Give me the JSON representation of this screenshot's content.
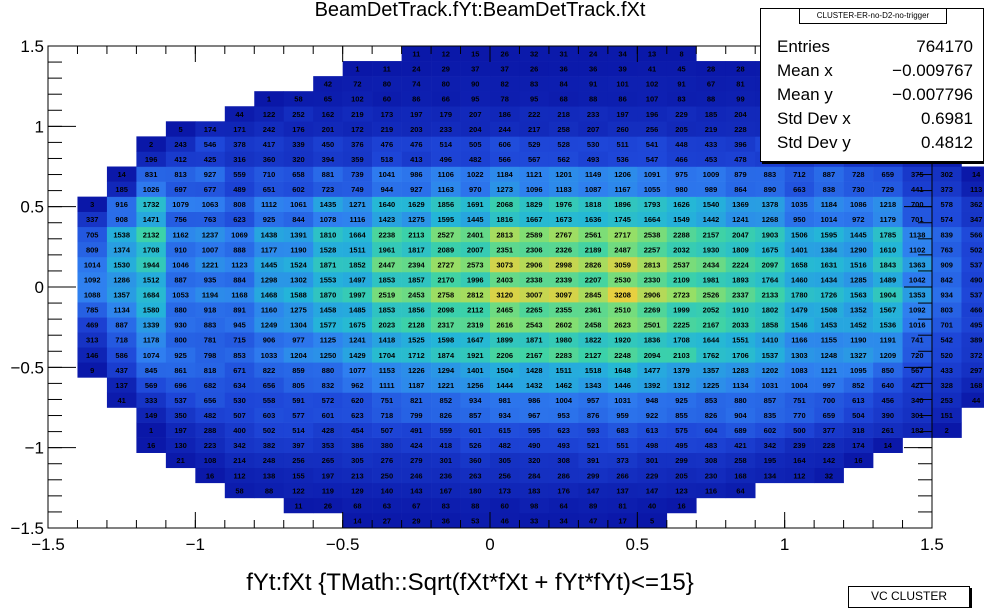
{
  "title": "BeamDetTrack.fYt:BeamDetTrack.fXt",
  "xlabel": "fYt:fXt {TMath::Sqrt(fXt*fXt + fYt*fYt)<=15}",
  "stats": {
    "name": "CLUSTER-ER-no-D2-no-trigger",
    "rows": [
      {
        "key": "Entries",
        "value": "764170"
      },
      {
        "key": "Mean x",
        "value": "−0.009767"
      },
      {
        "key": "Mean y",
        "value": "−0.007796"
      },
      {
        "key": "Std Dev x",
        "value": "0.6981"
      },
      {
        "key": "Std Dev y",
        "value": "0.4812"
      }
    ]
  },
  "corner_tag": "VC CLUSTER",
  "colors": {
    "palette": [
      "#0a17a8",
      "#1e46d8",
      "#2f7ef0",
      "#24b6d8",
      "#3cd2a8",
      "#8ee06a",
      "#e8d040"
    ]
  },
  "chart_data": {
    "type": "heatmap",
    "xlim": [
      -1.5,
      1.5
    ],
    "ylim": [
      -1.5,
      1.5
    ],
    "x_ticks": [
      "−1.5",
      "−1",
      "−0.5",
      "0",
      "0.5",
      "1",
      "1.5"
    ],
    "y_ticks": [
      "−1.5",
      "−1",
      "−0.5",
      "0",
      "0.5",
      "1",
      "1.5"
    ],
    "x_tick_values": [
      -1.5,
      -1,
      -0.5,
      0,
      0.5,
      1,
      1.5
    ],
    "y_tick_values": [
      -1.5,
      -1,
      -0.5,
      0,
      0.5,
      1,
      1.5
    ],
    "grid": false,
    "x_bins": 30,
    "y_bins": 30,
    "rows": [
      {
        "y_bin": 1,
        "start_bin": 11,
        "values": [
          14,
          27,
          29,
          36,
          53,
          46,
          33,
          34,
          47,
          17,
          5
        ]
      },
      {
        "y_bin": 2,
        "start_bin": 9,
        "values": [
          11,
          26,
          68,
          63,
          67,
          83,
          88,
          60,
          98,
          64,
          89,
          81,
          40,
          16
        ]
      },
      {
        "y_bin": 3,
        "start_bin": 7,
        "values": [
          58,
          88,
          122,
          119,
          129,
          140,
          143,
          167,
          180,
          173,
          183,
          176,
          147,
          137,
          147,
          123,
          116,
          64
        ]
      },
      {
        "y_bin": 4,
        "start_bin": 6,
        "values": [
          16,
          112,
          138,
          155,
          197,
          213,
          250,
          246,
          236,
          263,
          256,
          284,
          286,
          299,
          266,
          229,
          205,
          230,
          168,
          134,
          112,
          32
        ]
      },
      {
        "y_bin": 5,
        "start_bin": 5,
        "values": [
          21,
          108,
          214,
          248,
          256,
          265,
          305,
          276,
          279,
          301,
          360,
          305,
          320,
          308,
          391,
          373,
          301,
          299,
          308,
          258,
          195,
          164,
          142,
          16
        ]
      },
      {
        "y_bin": 6,
        "start_bin": 4,
        "values": [
          16,
          130,
          223,
          342,
          382,
          397,
          353,
          386,
          380,
          424,
          418,
          526,
          482,
          490,
          493,
          521,
          551,
          498,
          495,
          483,
          421,
          342,
          239,
          228,
          174,
          14
        ]
      },
      {
        "y_bin": 7,
        "start_bin": 4,
        "values": [
          1,
          197,
          288,
          400,
          502,
          514,
          428,
          454,
          507,
          491,
          559,
          601,
          615,
          595,
          623,
          593,
          683,
          613,
          575,
          604,
          689,
          602,
          500,
          377,
          318,
          261,
          182,
          2
        ]
      },
      {
        "y_bin": 8,
        "start_bin": 4,
        "values": [
          149,
          350,
          482,
          507,
          603,
          577,
          601,
          623,
          718,
          799,
          826,
          857,
          934,
          967,
          953,
          876,
          959,
          922,
          855,
          826,
          904,
          835,
          770,
          659,
          504,
          390,
          301,
          151
        ]
      },
      {
        "y_bin": 9,
        "start_bin": 3,
        "values": [
          41,
          333,
          537,
          656,
          530,
          558,
          591,
          572,
          620,
          751,
          821,
          852,
          934,
          981,
          986,
          1004,
          957,
          1031,
          948,
          925,
          853,
          880,
          857,
          751,
          700,
          613,
          456,
          340,
          253,
          44
        ]
      },
      {
        "y_bin": 10,
        "start_bin": 3,
        "values": [
          137,
          569,
          696,
          682,
          634,
          656,
          805,
          832,
          962,
          1111,
          1187,
          1221,
          1256,
          1444,
          1432,
          1462,
          1343,
          1446,
          1392,
          1312,
          1225,
          1134,
          1031,
          1004,
          997,
          852,
          640,
          421,
          328,
          168
        ]
      },
      {
        "y_bin": 11,
        "start_bin": 2,
        "values": [
          9,
          437,
          845,
          861,
          818,
          671,
          822,
          859,
          880,
          1077,
          1153,
          1226,
          1294,
          1401,
          1504,
          1428,
          1511,
          1518,
          1648,
          1477,
          1379,
          1357,
          1283,
          1202,
          1083,
          1121,
          1095,
          850,
          567,
          433,
          297,
          6
        ]
      },
      {
        "y_bin": 12,
        "start_bin": 2,
        "values": [
          146,
          586,
          1074,
          925,
          798,
          853,
          1033,
          1204,
          1250,
          1429,
          1704,
          1712,
          1874,
          1921,
          2206,
          2167,
          2283,
          2127,
          2248,
          2094,
          2103,
          1762,
          1706,
          1537,
          1303,
          1248,
          1327,
          1209,
          720,
          520,
          372,
          119
        ]
      },
      {
        "y_bin": 13,
        "start_bin": 2,
        "values": [
          313,
          718,
          1178,
          800,
          781,
          715,
          906,
          977,
          1125,
          1241,
          1418,
          1525,
          1598,
          1647,
          1899,
          1871,
          1980,
          1822,
          1920,
          1836,
          1708,
          1644,
          1551,
          1410,
          1166,
          1155,
          1190,
          1191,
          741,
          542,
          389,
          158
        ]
      },
      {
        "y_bin": 14,
        "start_bin": 2,
        "values": [
          469,
          887,
          1339,
          930,
          883,
          945,
          1249,
          1304,
          1577,
          1675,
          2023,
          2128,
          2317,
          2319,
          2616,
          2543,
          2602,
          2458,
          2623,
          2501,
          2225,
          2167,
          2033,
          1858,
          1546,
          1453,
          1452,
          1536,
          1016,
          701,
          495,
          281
        ]
      },
      {
        "y_bin": 15,
        "start_bin": 2,
        "values": [
          785,
          1134,
          1580,
          880,
          918,
          891,
          1160,
          1275,
          1458,
          1485,
          1853,
          1856,
          2098,
          2112,
          2465,
          2265,
          2355,
          2361,
          2510,
          2269,
          1999,
          2052,
          1910,
          1802,
          1479,
          1508,
          1352,
          1567,
          1092,
          803,
          466,
          309
        ]
      },
      {
        "y_bin": 16,
        "start_bin": 2,
        "values": [
          1088,
          1357,
          1684,
          1053,
          1194,
          1168,
          1468,
          1588,
          1870,
          1997,
          2519,
          2453,
          2758,
          2812,
          3120,
          3007,
          3097,
          2845,
          3208,
          2906,
          2723,
          2526,
          2337,
          2133,
          1780,
          1726,
          1563,
          1904,
          1353,
          934,
          537,
          445
        ]
      },
      {
        "y_bin": 17,
        "start_bin": 2,
        "values": [
          1092,
          1286,
          1512,
          887,
          935,
          884,
          1298,
          1302,
          1553,
          1497,
          1853,
          1857,
          2170,
          1996,
          2403,
          2338,
          2339,
          2207,
          2530,
          2330,
          2109,
          1981,
          1893,
          1764,
          1460,
          1434,
          1285,
          1489,
          1042,
          842,
          490,
          420
        ]
      },
      {
        "y_bin": 18,
        "start_bin": 2,
        "values": [
          1014,
          1530,
          1944,
          1046,
          1221,
          1123,
          1445,
          1524,
          1871,
          1852,
          2447,
          2394,
          2727,
          2573,
          3073,
          2906,
          2998,
          2826,
          3059,
          2813,
          2537,
          2434,
          2224,
          2097,
          1658,
          1631,
          1516,
          1843,
          1363,
          909,
          537,
          332
        ]
      },
      {
        "y_bin": 19,
        "start_bin": 2,
        "values": [
          809,
          1374,
          1708,
          910,
          1007,
          888,
          1177,
          1190,
          1528,
          1511,
          1961,
          1817,
          2089,
          2007,
          2351,
          2306,
          2326,
          2189,
          2487,
          2257,
          2032,
          1930,
          1809,
          1675,
          1401,
          1384,
          1290,
          1610,
          1102,
          763,
          502,
          278
        ]
      },
      {
        "y_bin": 20,
        "start_bin": 2,
        "values": [
          705,
          1538,
          2132,
          1162,
          1237,
          1069,
          1438,
          1391,
          1810,
          1664,
          2238,
          2113,
          2527,
          2401,
          2813,
          2589,
          2767,
          2561,
          2717,
          2538,
          2288,
          2157,
          2047,
          1903,
          1506,
          1595,
          1445,
          1785,
          1138,
          839,
          566,
          287
        ]
      },
      {
        "y_bin": 21,
        "start_bin": 2,
        "values": [
          337,
          908,
          1471,
          756,
          763,
          623,
          925,
          844,
          1078,
          1116,
          1423,
          1275,
          1595,
          1445,
          1816,
          1667,
          1673,
          1636,
          1745,
          1664,
          1549,
          1442,
          1241,
          1268,
          950,
          1014,
          972,
          1179,
          701,
          574,
          347,
          122
        ]
      },
      {
        "y_bin": 22,
        "start_bin": 2,
        "values": [
          3,
          916,
          1732,
          1079,
          1063,
          808,
          1112,
          1061,
          1435,
          1271,
          1640,
          1629,
          1856,
          1691,
          2068,
          1829,
          1976,
          1818,
          1896,
          1793,
          1626,
          1540,
          1369,
          1378,
          1035,
          1184,
          1086,
          1218,
          700,
          578,
          362,
          6
        ]
      },
      {
        "y_bin": 23,
        "start_bin": 3,
        "values": [
          185,
          1026,
          697,
          677,
          489,
          651,
          602,
          723,
          749,
          944,
          927,
          1163,
          970,
          1273,
          1096,
          1183,
          1087,
          1167,
          1055,
          980,
          989,
          864,
          890,
          663,
          838,
          730,
          729,
          441,
          373,
          113
        ]
      },
      {
        "y_bin": 24,
        "start_bin": 3,
        "values": [
          14,
          831,
          813,
          927,
          559,
          710,
          658,
          881,
          739,
          1041,
          986,
          1106,
          1022,
          1184,
          1121,
          1201,
          1149,
          1206,
          1091,
          975,
          1009,
          879,
          883,
          712,
          887,
          728,
          659,
          375,
          302,
          14
        ]
      },
      {
        "y_bin": 25,
        "start_bin": 4,
        "values": [
          196,
          412,
          425,
          316,
          360,
          320,
          394,
          359,
          518,
          413,
          496,
          482,
          566,
          567,
          562,
          493,
          536,
          547,
          466,
          453,
          478,
          436,
          384,
          480,
          327,
          324,
          158,
          74
        ]
      },
      {
        "y_bin": 26,
        "start_bin": 4,
        "values": [
          2,
          243,
          546,
          378,
          417,
          339,
          450,
          376,
          476,
          476,
          514,
          505,
          606,
          529,
          528,
          530,
          511,
          541,
          448,
          433,
          396,
          523,
          402,
          450
        ]
      },
      {
        "y_bin": 27,
        "start_bin": 5,
        "values": [
          5,
          174,
          171,
          242,
          176,
          201,
          172,
          219,
          203,
          233,
          204,
          244,
          217,
          258,
          207,
          260,
          256,
          205,
          219,
          228,
          217,
          144,
          188
        ]
      },
      {
        "y_bin": 28,
        "start_bin": 7,
        "values": [
          44,
          122,
          252,
          162,
          219,
          173,
          197,
          179,
          207,
          186,
          222,
          218,
          233,
          197,
          196,
          229,
          185,
          204,
          203,
          211,
          189,
          177
        ]
      },
      {
        "y_bin": 29,
        "start_bin": 8,
        "values": [
          1,
          58,
          65,
          102,
          60,
          86,
          66,
          95,
          78,
          95,
          68,
          88,
          86,
          107,
          83,
          88,
          99,
          86,
          83,
          61,
          43
        ]
      },
      {
        "y_bin": 30,
        "start_bin": 10,
        "values": [
          42,
          72,
          80,
          74,
          80,
          90,
          82,
          83,
          84,
          91,
          101,
          102,
          91,
          67,
          81,
          70,
          56,
          21
        ]
      },
      {
        "y_bin": 31,
        "start_bin": 11,
        "values": [
          1,
          11,
          24,
          29,
          37,
          37,
          26,
          36,
          36,
          39,
          41,
          45,
          28,
          28,
          35,
          12,
          2
        ]
      },
      {
        "y_bin": 32,
        "start_bin": 13,
        "values": [
          11,
          12,
          15,
          26,
          32,
          31,
          24,
          34,
          13,
          8
        ]
      }
    ]
  }
}
